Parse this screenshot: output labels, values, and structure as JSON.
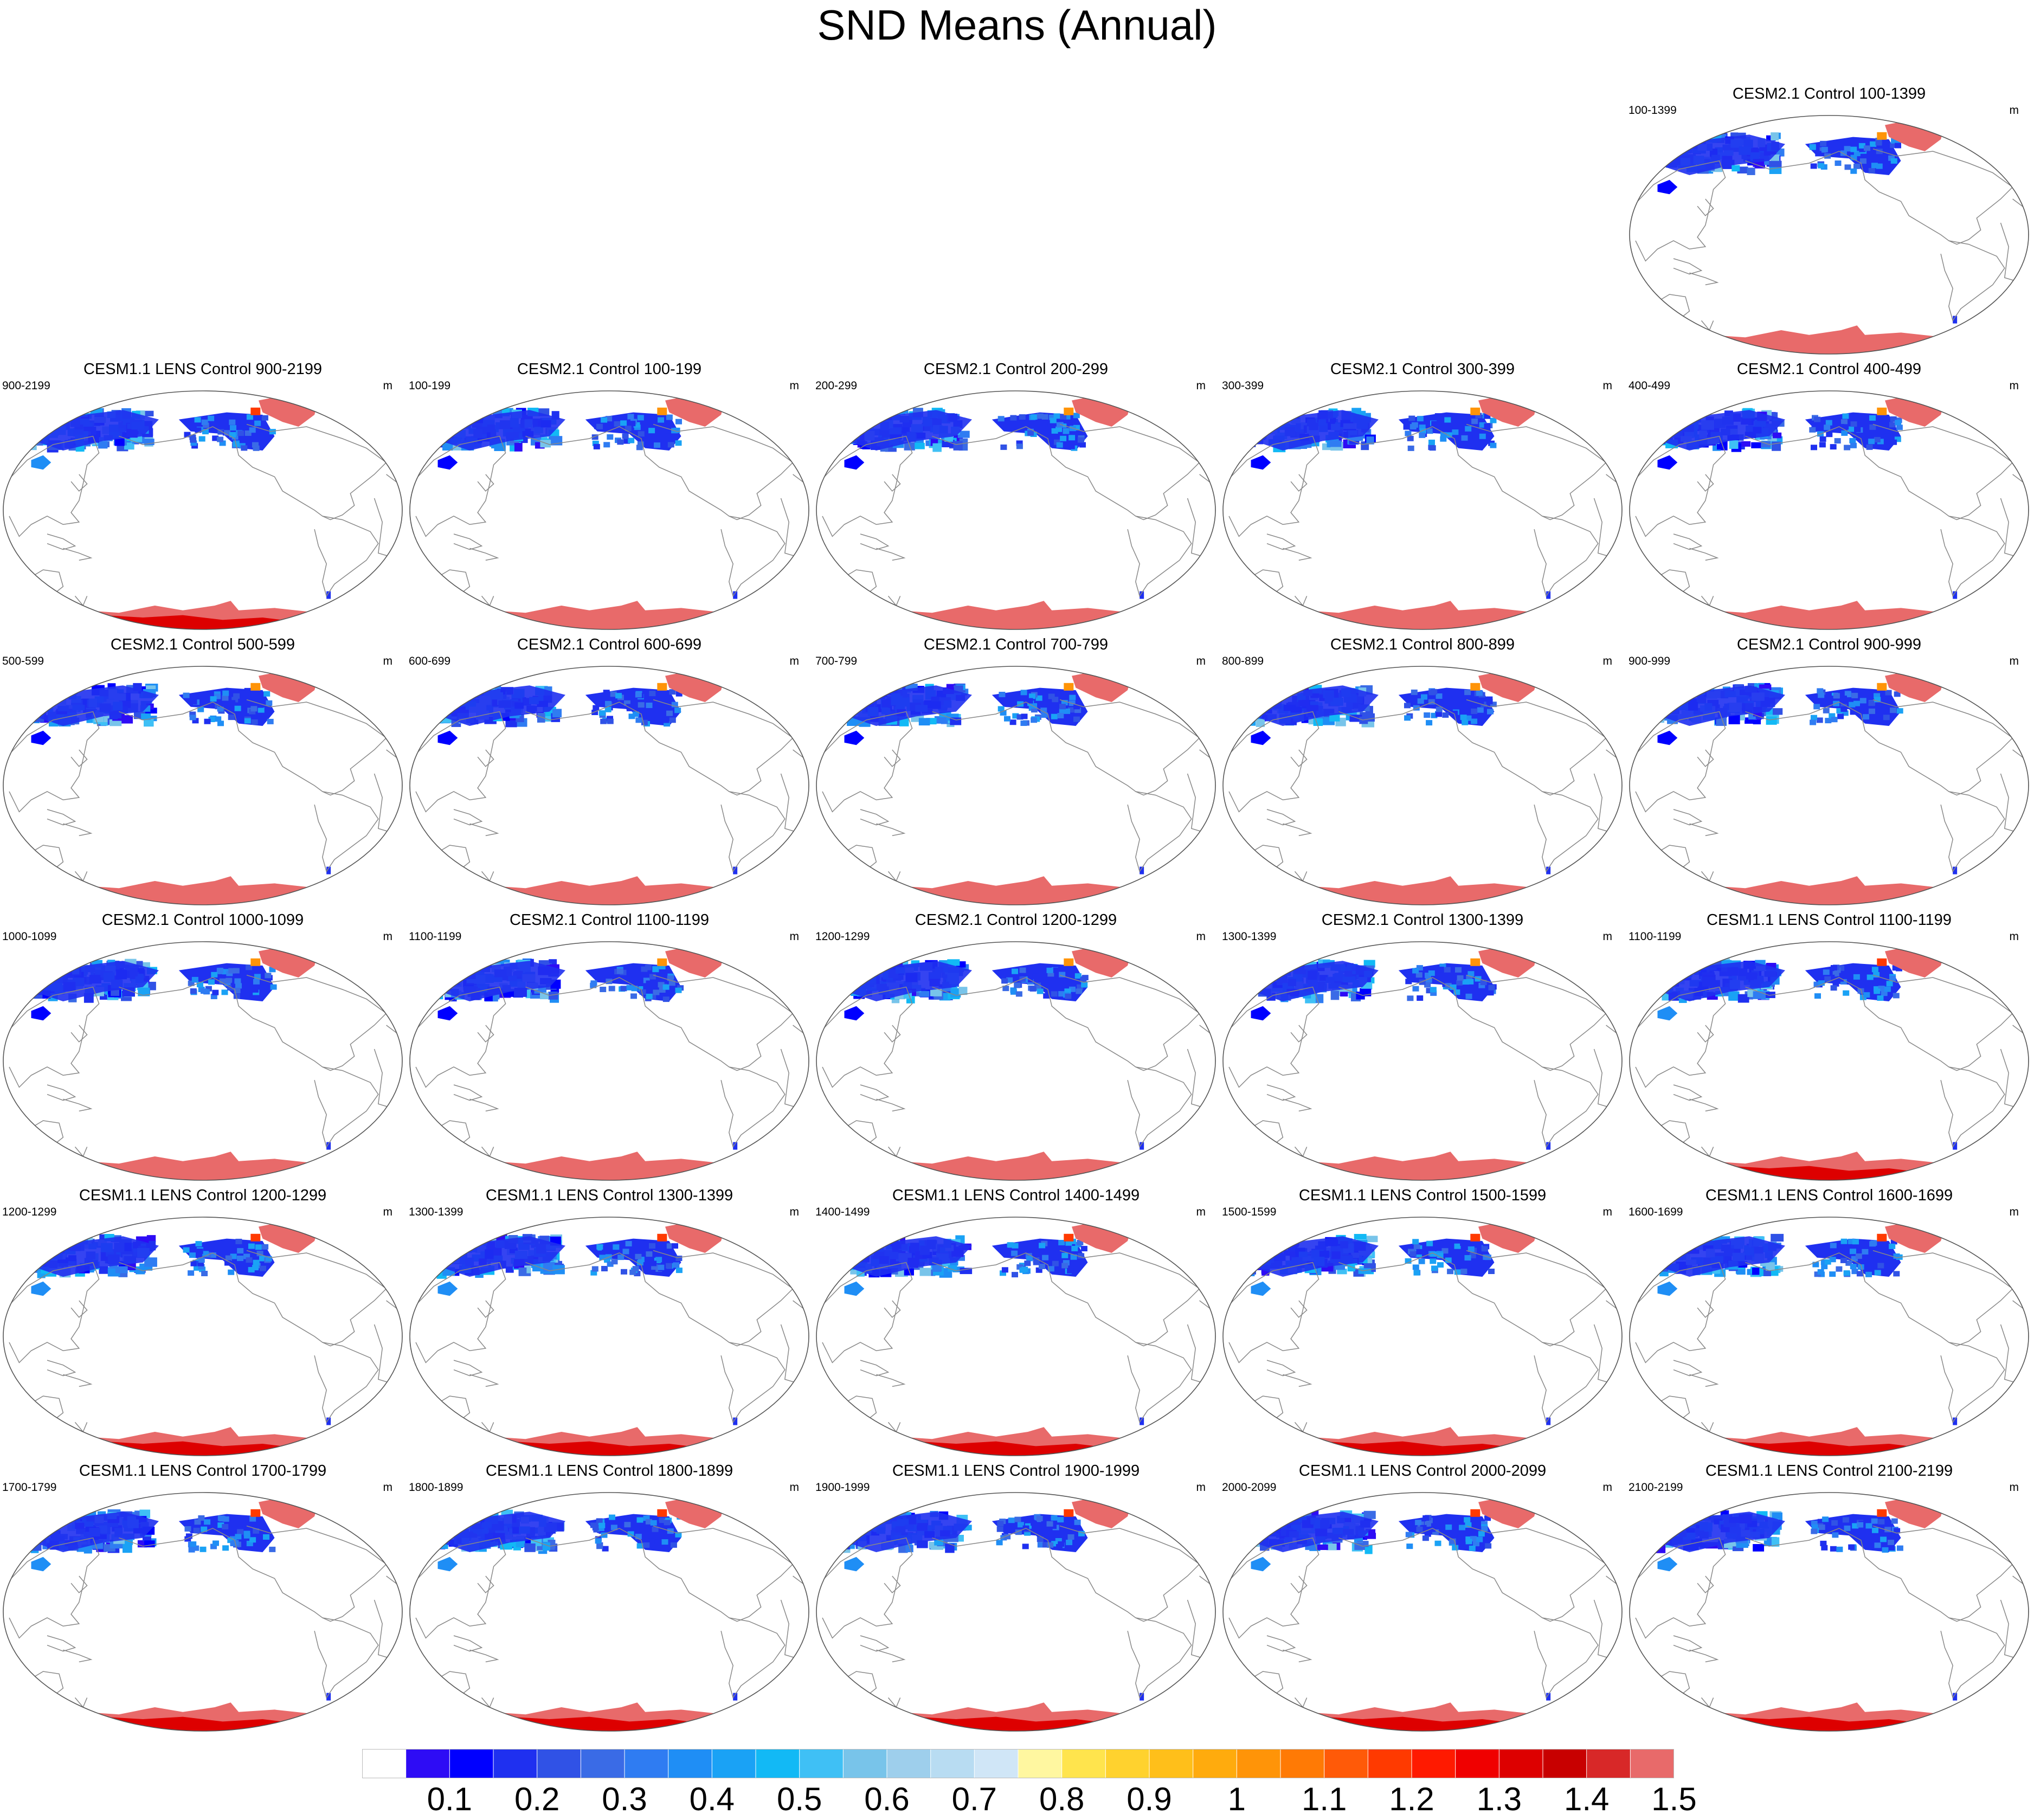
{
  "title": "SND Means (Annual)",
  "units": "m",
  "panels": [
    {
      "title": "CESM2.1 Control 100-1399",
      "left": "100-1399",
      "right": "m",
      "variant": "cesm2"
    },
    {
      "title": "CESM1.1 LENS Control 900-2199",
      "left": "900-2199",
      "right": "m",
      "variant": "cesm1"
    },
    {
      "title": "CESM2.1 Control 100-199",
      "left": "100-199",
      "right": "m",
      "variant": "cesm2"
    },
    {
      "title": "CESM2.1 Control 200-299",
      "left": "200-299",
      "right": "m",
      "variant": "cesm2"
    },
    {
      "title": "CESM2.1 Control 300-399",
      "left": "300-399",
      "right": "m",
      "variant": "cesm2"
    },
    {
      "title": "CESM2.1 Control 400-499",
      "left": "400-499",
      "right": "m",
      "variant": "cesm2"
    },
    {
      "title": "CESM2.1 Control 500-599",
      "left": "500-599",
      "right": "m",
      "variant": "cesm2"
    },
    {
      "title": "CESM2.1 Control 600-699",
      "left": "600-699",
      "right": "m",
      "variant": "cesm2"
    },
    {
      "title": "CESM2.1 Control 700-799",
      "left": "700-799",
      "right": "m",
      "variant": "cesm2"
    },
    {
      "title": "CESM2.1 Control 800-899",
      "left": "800-899",
      "right": "m",
      "variant": "cesm2"
    },
    {
      "title": "CESM2.1 Control 900-999",
      "left": "900-999",
      "right": "m",
      "variant": "cesm2"
    },
    {
      "title": "CESM2.1 Control 1000-1099",
      "left": "1000-1099",
      "right": "m",
      "variant": "cesm2"
    },
    {
      "title": "CESM2.1 Control 1100-1199",
      "left": "1100-1199",
      "right": "m",
      "variant": "cesm2"
    },
    {
      "title": "CESM2.1 Control 1200-1299",
      "left": "1200-1299",
      "right": "m",
      "variant": "cesm2"
    },
    {
      "title": "CESM2.1 Control 1300-1399",
      "left": "1300-1399",
      "right": "m",
      "variant": "cesm2"
    },
    {
      "title": "CESM1.1 LENS Control 1100-1199",
      "left": "1100-1199",
      "right": "m",
      "variant": "cesm1"
    },
    {
      "title": "CESM1.1 LENS Control 1200-1299",
      "left": "1200-1299",
      "right": "m",
      "variant": "cesm1"
    },
    {
      "title": "CESM1.1 LENS Control 1300-1399",
      "left": "1300-1399",
      "right": "m",
      "variant": "cesm1"
    },
    {
      "title": "CESM1.1 LENS Control 1400-1499",
      "left": "1400-1499",
      "right": "m",
      "variant": "cesm1"
    },
    {
      "title": "CESM1.1 LENS Control 1500-1599",
      "left": "1500-1599",
      "right": "m",
      "variant": "cesm1"
    },
    {
      "title": "CESM1.1 LENS Control 1600-1699",
      "left": "1600-1699",
      "right": "m",
      "variant": "cesm1"
    },
    {
      "title": "CESM1.1 LENS Control 1700-1799",
      "left": "1700-1799",
      "right": "m",
      "variant": "cesm1"
    },
    {
      "title": "CESM1.1 LENS Control 1800-1899",
      "left": "1800-1899",
      "right": "m",
      "variant": "cesm1"
    },
    {
      "title": "CESM1.1 LENS Control 1900-1999",
      "left": "1900-1999",
      "right": "m",
      "variant": "cesm1"
    },
    {
      "title": "CESM1.1 LENS Control 2000-2099",
      "left": "2000-2099",
      "right": "m",
      "variant": "cesm1"
    },
    {
      "title": "CESM1.1 LENS Control 2100-2199",
      "left": "2100-2199",
      "right": "m",
      "variant": "cesm1"
    }
  ],
  "colorbar": {
    "colors": [
      "#ffffff",
      "#2e0cf5",
      "#0000ff",
      "#1f30f0",
      "#3052e6",
      "#3a6be6",
      "#2f7cf2",
      "#1f8ef5",
      "#1aa2f5",
      "#12b9f5",
      "#3fc0f5",
      "#78c4ea",
      "#9ecfec",
      "#b8dcf2",
      "#d0e6f7",
      "#fff7a0",
      "#ffe44d",
      "#ffd22e",
      "#ffbf1a",
      "#ffab0d",
      "#ff9408",
      "#ff7a05",
      "#ff5a08",
      "#ff3a00",
      "#ff1a00",
      "#f00000",
      "#dd0000",
      "#c80000",
      "#d82828",
      "#e86a6a"
    ],
    "labels": [
      "0.1",
      "0.2",
      "0.3",
      "0.4",
      "0.5",
      "0.6",
      "0.7",
      "0.8",
      "0.9",
      "1",
      "1.1",
      "1.2",
      "1.3",
      "1.4",
      "1.5"
    ]
  }
}
